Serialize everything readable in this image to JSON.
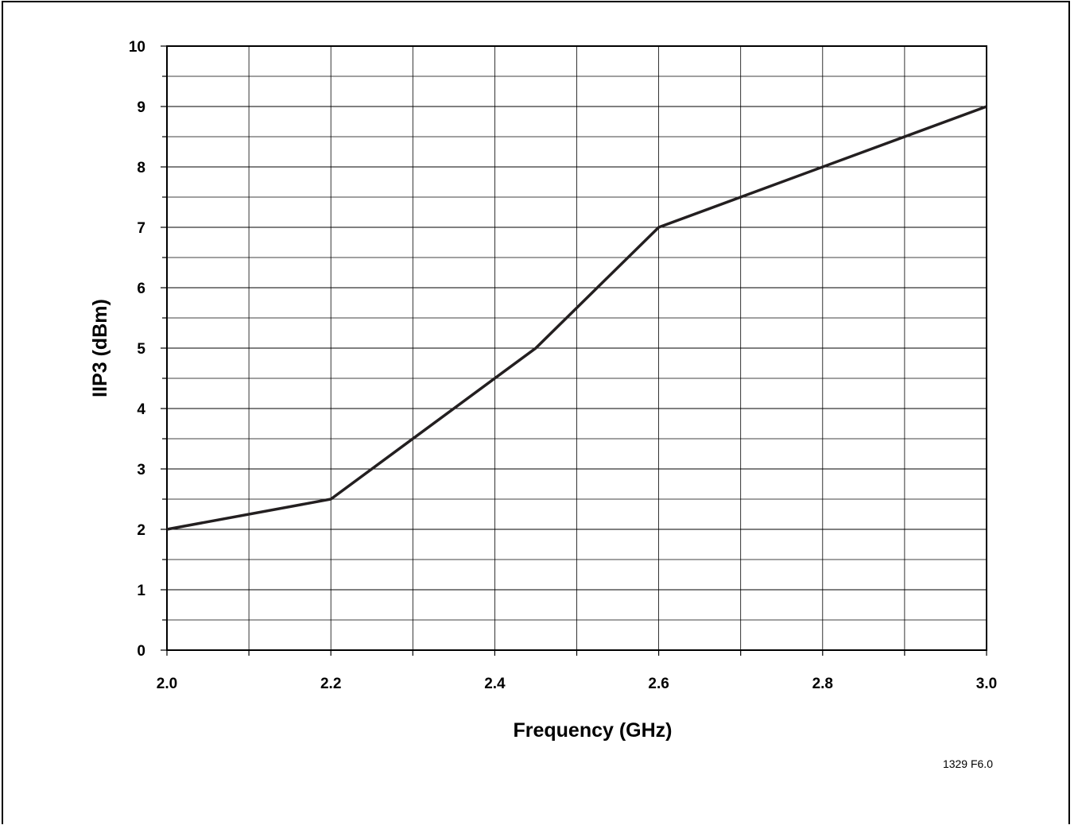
{
  "chart_data": {
    "type": "line",
    "title": "",
    "xlabel": "Frequency (GHz)",
    "ylabel": "IIP3 (dBm)",
    "xlim": [
      2.0,
      3.0
    ],
    "ylim": [
      0,
      10
    ],
    "grid": true,
    "x_ticks": [
      "2.0",
      "2.2",
      "2.4",
      "2.6",
      "2.8",
      "3.0"
    ],
    "y_ticks": [
      "0",
      "1",
      "2",
      "3",
      "4",
      "5",
      "6",
      "7",
      "8",
      "9",
      "10"
    ],
    "series": [
      {
        "x": [
          2.0,
          2.2,
          2.45,
          2.6,
          3.0
        ],
        "y": [
          2.0,
          2.5,
          5.0,
          7.0,
          9.0
        ],
        "color": "#231f20"
      }
    ],
    "annotation": "1329 F6.0"
  }
}
